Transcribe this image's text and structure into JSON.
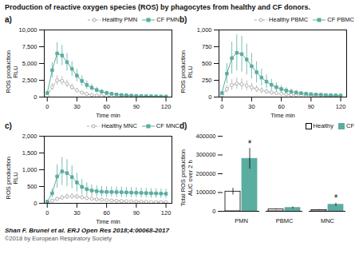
{
  "title": "Production of reactive oxygen species (ROS) by phagocytes from healthy and CF donors.",
  "annotations": [
    "Shan F. Brunel et al. ERJ Open Res 2018;4:00068-2017",
    "©2018 by European Respiratory Society"
  ],
  "chart_data": [
    {
      "type": "line",
      "title": "a)",
      "xlabel": "Time min",
      "ylabel": "ROS production\nRLU",
      "xlim": [
        -3,
        126
      ],
      "xticks": [
        0,
        30,
        60,
        90,
        120
      ],
      "ylim": [
        0,
        10000
      ],
      "yticks": [
        0,
        2500,
        5000,
        7500,
        10000
      ],
      "grid": false,
      "legend": "upper right",
      "x": [
        0,
        5,
        10,
        15,
        20,
        25,
        30,
        35,
        40,
        45,
        50,
        55,
        60,
        65,
        70,
        75,
        80,
        85,
        90,
        95,
        100,
        105,
        110,
        115,
        120
      ],
      "series": [
        {
          "name": "Healthy PMN",
          "color": "#aaaaaa",
          "marker": "open_circle",
          "line_style": "dashed",
          "values": [
            200,
            1500,
            2500,
            2400,
            2000,
            1500,
            1000,
            650,
            450,
            320,
            230,
            165,
            120,
            90,
            70,
            55,
            45,
            38,
            32,
            27,
            23,
            20,
            17,
            15,
            13
          ],
          "errors": [
            100,
            500,
            700,
            650,
            550,
            430,
            320,
            230,
            165,
            120,
            90,
            70,
            55,
            45,
            38,
            32,
            27,
            23,
            20,
            17,
            15,
            13,
            11,
            10,
            9
          ]
        },
        {
          "name": "CF PMN",
          "color": "#5aada0",
          "marker": "square",
          "line_style": "solid",
          "values": [
            600,
            4000,
            6500,
            6200,
            5200,
            4200,
            3200,
            2400,
            1800,
            1400,
            1050,
            800,
            620,
            490,
            390,
            310,
            260,
            215,
            180,
            155,
            130,
            115,
            100,
            90,
            80
          ],
          "errors": [
            250,
            1100,
            1600,
            1500,
            1300,
            1100,
            900,
            750,
            620,
            510,
            420,
            345,
            285,
            240,
            205,
            178,
            155,
            135,
            120,
            106,
            93,
            82,
            73,
            65,
            58
          ]
        }
      ]
    },
    {
      "type": "line",
      "title": "b)",
      "xlabel": "Time min",
      "ylabel": "ROS production\nRLU",
      "xlim": [
        -3,
        126
      ],
      "xticks": [
        0,
        30,
        60,
        90,
        120
      ],
      "ylim": [
        0,
        1000
      ],
      "yticks": [
        0,
        250,
        500,
        750,
        1000
      ],
      "grid": false,
      "legend": "upper right",
      "x": [
        0,
        5,
        10,
        15,
        20,
        25,
        30,
        35,
        40,
        45,
        50,
        55,
        60,
        65,
        70,
        75,
        80,
        85,
        90,
        95,
        100,
        105,
        110,
        115,
        120
      ],
      "series": [
        {
          "name": "Healthy PBMC",
          "color": "#aaaaaa",
          "marker": "open_circle",
          "line_style": "dashed",
          "values": [
            30,
            120,
            180,
            200,
            190,
            170,
            145,
            120,
            100,
            82,
            68,
            57,
            48,
            41,
            35,
            30,
            26,
            23,
            20,
            18,
            16,
            14,
            12,
            11,
            10
          ],
          "errors": [
            15,
            55,
            80,
            85,
            82,
            73,
            63,
            53,
            44,
            37,
            31,
            26,
            22,
            19,
            17,
            15,
            13,
            11,
            10,
            9,
            8,
            7,
            6,
            5,
            5
          ]
        },
        {
          "name": "CF PBMC",
          "color": "#5aada0",
          "marker": "square",
          "line_style": "solid",
          "values": [
            60,
            350,
            580,
            660,
            640,
            560,
            460,
            370,
            290,
            230,
            183,
            147,
            119,
            97,
            80,
            67,
            57,
            49,
            43,
            38,
            34,
            30,
            27,
            25,
            23
          ],
          "errors": [
            25,
            150,
            240,
            270,
            265,
            230,
            192,
            157,
            124,
            100,
            80,
            65,
            54,
            45,
            38,
            33,
            29,
            26,
            23,
            21,
            19,
            17,
            16,
            15,
            14
          ]
        }
      ]
    },
    {
      "type": "line",
      "title": "c)",
      "xlabel": "Time min",
      "ylabel": "ROS production\nRLU",
      "xlim": [
        -3,
        126
      ],
      "xticks": [
        0,
        30,
        60,
        90,
        120
      ],
      "ylim": [
        0,
        2000
      ],
      "yticks": [
        0,
        500,
        1000,
        1500,
        2000
      ],
      "grid": false,
      "legend": "upper right",
      "x": [
        0,
        5,
        10,
        15,
        20,
        25,
        30,
        35,
        40,
        45,
        50,
        55,
        60,
        65,
        70,
        75,
        80,
        85,
        90,
        95,
        100,
        105,
        110,
        115,
        120
      ],
      "series": [
        {
          "name": "Healthy MNC",
          "color": "#aaaaaa",
          "marker": "open_circle",
          "line_style": "dashed",
          "values": [
            20,
            80,
            130,
            170,
            200,
            210,
            200,
            180,
            155,
            135,
            118,
            104,
            92,
            82,
            74,
            67,
            61,
            56,
            51,
            47,
            44,
            40,
            37,
            35,
            33
          ],
          "errors": [
            10,
            35,
            55,
            70,
            80,
            84,
            82,
            74,
            65,
            58,
            52,
            46,
            41,
            37,
            34,
            31,
            29,
            27,
            25,
            23,
            22,
            20,
            19,
            18,
            17
          ]
        },
        {
          "name": "CF MNC",
          "color": "#5aada0",
          "marker": "square",
          "line_style": "solid",
          "values": [
            50,
            300,
            800,
            950,
            900,
            780,
            620,
            490,
            420,
            380,
            360,
            345,
            340,
            338,
            335,
            330,
            325,
            320,
            315,
            310,
            305,
            300,
            295,
            290,
            285
          ],
          "errors": [
            20,
            130,
            350,
            420,
            400,
            340,
            275,
            220,
            190,
            175,
            165,
            160,
            158,
            155,
            154,
            152,
            150,
            149,
            147,
            145,
            143,
            141,
            140,
            138,
            136
          ]
        }
      ]
    },
    {
      "type": "bar",
      "title": "d)",
      "ylabel": "Total ROS production\nAUC over 2 h",
      "categories": [
        "PMN",
        "PBMC",
        "MNC"
      ],
      "ylim": [
        0,
        400000
      ],
      "yticks": [
        0,
        100000,
        200000,
        300000,
        400000
      ],
      "grid": false,
      "legend": "upper right",
      "series": [
        {
          "name": "Healthy",
          "color": "#ffffff",
          "values": [
            105000,
            10000,
            7000
          ],
          "errors": [
            18000,
            3000,
            2000
          ]
        },
        {
          "name": "CF",
          "color": "#5aada0",
          "values": [
            280000,
            18000,
            35000
          ],
          "errors": [
            55000,
            5000,
            8000
          ]
        }
      ],
      "annotations": [
        {
          "text": "*",
          "category": "PMN",
          "series": "CF"
        },
        {
          "text": "*",
          "category": "MNC",
          "series": "CF"
        }
      ]
    }
  ]
}
